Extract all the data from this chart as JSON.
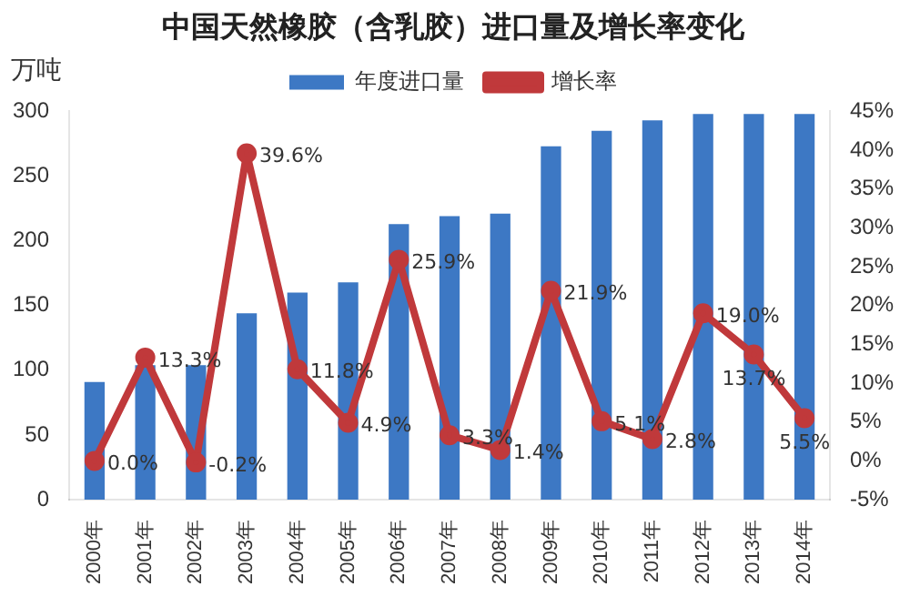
{
  "chart_data": {
    "type": "bar",
    "title": "中国天然橡胶（含乳胶）进口量及增长率变化",
    "ylabel": "万吨",
    "categories": [
      "2000年",
      "2001年",
      "2002年",
      "2003年",
      "2004年",
      "2005年",
      "2006年",
      "2007年",
      "2008年",
      "2009年",
      "2010年",
      "2011年",
      "2012年",
      "2013年",
      "2014年"
    ],
    "series": [
      {
        "name": "年度进口量",
        "color": "#3d78c4",
        "values": [
          91,
          104,
          104,
          144,
          160,
          168,
          213,
          219,
          221,
          273,
          285,
          293,
          298,
          298,
          298
        ]
      },
      {
        "name": "增长率",
        "type": "line",
        "axis": "y2",
        "color": "#c0393b",
        "marker": "circle",
        "values": [
          0.0,
          13.3,
          -0.2,
          39.6,
          11.8,
          4.9,
          25.9,
          3.3,
          1.4,
          21.9,
          5.1,
          2.8,
          19.0,
          13.7,
          5.5
        ],
        "value_labels": [
          "0.0%",
          "13.3%",
          "-0.2%",
          "39.6%",
          "11.8%",
          "4.9%",
          "25.9%",
          "3.3%",
          "1.4%",
          "21.9%",
          "5.1%",
          "2.8%",
          "19.0%",
          "13.7%",
          "5.5%"
        ]
      }
    ],
    "ylim": [
      0,
      300
    ],
    "yticks": [
      0,
      50,
      100,
      150,
      200,
      250,
      300
    ],
    "y2lim": [
      -5,
      45
    ],
    "y2ticks": [
      {
        "value": -5,
        "label": "-5%"
      },
      {
        "value": 0,
        "label": "0%"
      },
      {
        "value": 5,
        "label": "5%"
      },
      {
        "value": 10,
        "label": "10%"
      },
      {
        "value": 15,
        "label": "15%"
      },
      {
        "value": 20,
        "label": "20%"
      },
      {
        "value": 25,
        "label": "25%"
      },
      {
        "value": 30,
        "label": "30%"
      },
      {
        "value": 35,
        "label": "35%"
      },
      {
        "value": 40,
        "label": "40%"
      },
      {
        "value": 45,
        "label": "45%"
      }
    ],
    "grid": false,
    "legend": "top"
  }
}
